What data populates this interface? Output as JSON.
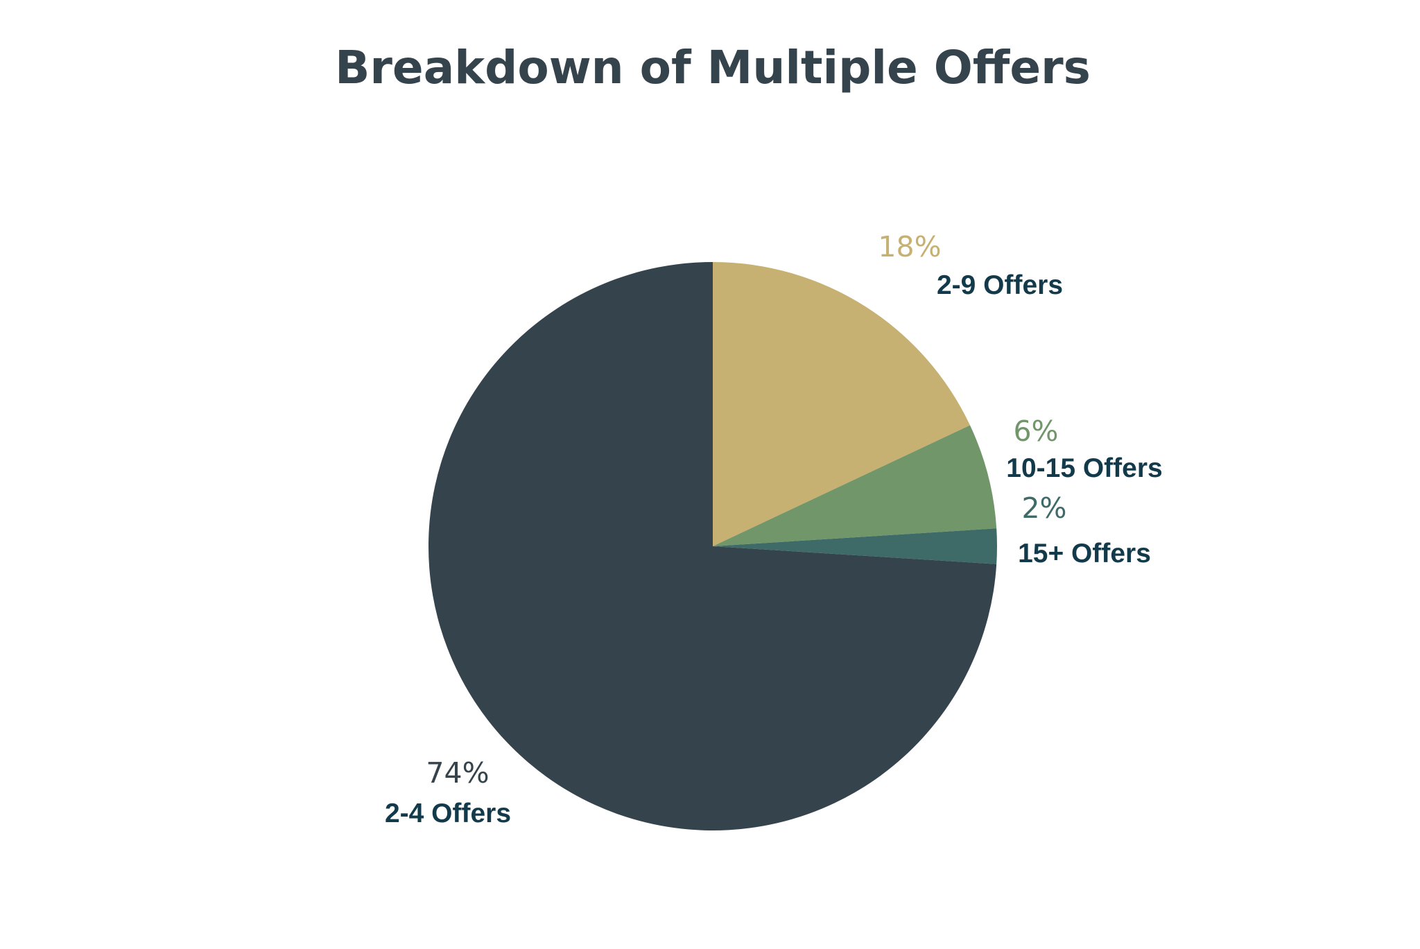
{
  "chart_data": {
    "type": "pie",
    "title": "Breakdown of Multiple Offers",
    "start_angle_deg": 0,
    "direction": "clockwise",
    "slices": [
      {
        "label": "2-9 Offers",
        "percent_label": "18%",
        "value": 18,
        "color": "#c6b173",
        "percent_color": "#c6b173"
      },
      {
        "label": "10-15 Offers",
        "percent_label": "6%",
        "value": 6,
        "color": "#71966a",
        "percent_color": "#71966a"
      },
      {
        "label": "15+ Offers",
        "percent_label": "2%",
        "value": 2,
        "color": "#3e6b68",
        "percent_color": "#3e6b68"
      },
      {
        "label": "2-4 Offers",
        "percent_label": "74%",
        "value": 74,
        "color": "#34434c",
        "percent_color": "#34434c"
      }
    ],
    "legend": "none"
  }
}
